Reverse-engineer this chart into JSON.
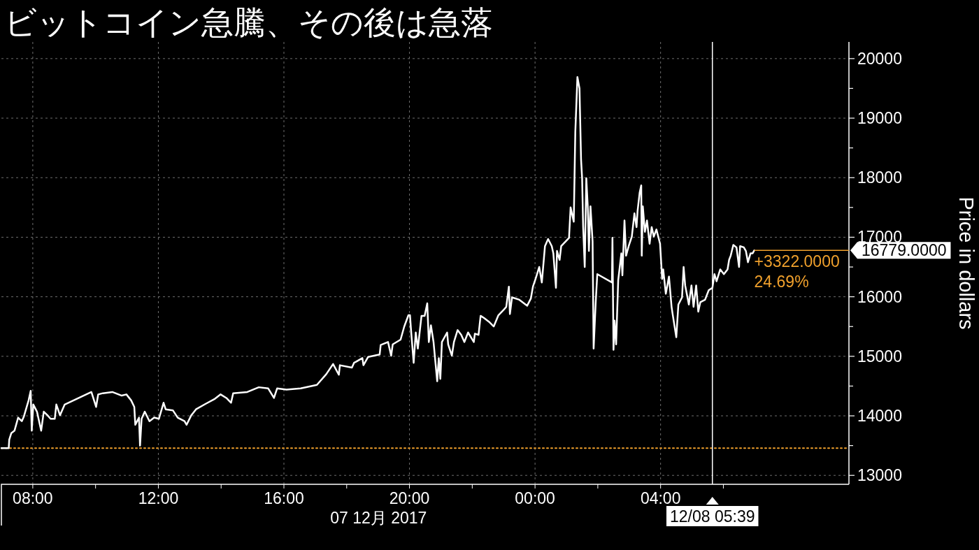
{
  "chart_data": {
    "type": "line",
    "title": "ビットコイン急騰、その後は急落",
    "xlabel": "07 12月 2017",
    "ylabel": "Price in dollars",
    "x": [
      "2017-12-07T07:00",
      "2017-12-07T07:14",
      "2017-12-07T07:15",
      "2017-12-07T07:19",
      "2017-12-07T07:25",
      "2017-12-07T07:32",
      "2017-12-07T07:39",
      "2017-12-07T07:43",
      "2017-12-07T07:52",
      "2017-12-07T07:56",
      "2017-12-07T07:58",
      "2017-12-07T08:01",
      "2017-12-07T08:08",
      "2017-12-07T08:16",
      "2017-12-07T08:21",
      "2017-12-07T08:28",
      "2017-12-07T08:34",
      "2017-12-07T08:42",
      "2017-12-07T08:45",
      "2017-12-07T08:52",
      "2017-12-07T09:01",
      "2017-12-07T09:52",
      "2017-12-07T10:01",
      "2017-12-07T10:05",
      "2017-12-07T10:14",
      "2017-12-07T10:32",
      "2017-12-07T10:50",
      "2017-12-07T10:59",
      "2017-12-07T11:08",
      "2017-12-07T11:14",
      "2017-12-07T11:16",
      "2017-12-07T11:23",
      "2017-12-07T11:25",
      "2017-12-07T11:28",
      "2017-12-07T11:34",
      "2017-12-07T11:43",
      "2017-12-07T11:52",
      "2017-12-07T12:01",
      "2017-12-07T12:10",
      "2017-12-07T12:14",
      "2017-12-07T12:28",
      "2017-12-07T12:37",
      "2017-12-07T12:50",
      "2017-12-07T12:54",
      "2017-12-07T13:03",
      "2017-12-07T13:12",
      "2017-12-07T13:30",
      "2017-12-07T13:47",
      "2017-12-07T13:59",
      "2017-12-07T14:10",
      "2017-12-07T14:19",
      "2017-12-07T14:23",
      "2017-12-07T14:50",
      "2017-12-07T15:12",
      "2017-12-07T15:30",
      "2017-12-07T15:41",
      "2017-12-07T15:47",
      "2017-12-07T16:05",
      "2017-12-07T16:32",
      "2017-12-07T17:03",
      "2017-12-07T17:21",
      "2017-12-07T17:34",
      "2017-12-07T17:45",
      "2017-12-07T17:47",
      "2017-12-07T18:10",
      "2017-12-07T18:14",
      "2017-12-07T18:30",
      "2017-12-07T18:32",
      "2017-12-07T18:41",
      "2017-12-07T19:03",
      "2017-12-07T19:05",
      "2017-12-07T19:19",
      "2017-12-07T19:25",
      "2017-12-07T19:28",
      "2017-12-07T19:43",
      "2017-12-07T19:50",
      "2017-12-07T19:58",
      "2017-12-07T20:01",
      "2017-12-07T20:03",
      "2017-12-07T20:08",
      "2017-12-07T20:12",
      "2017-12-07T20:16",
      "2017-12-07T20:23",
      "2017-12-07T20:29",
      "2017-12-07T20:34",
      "2017-12-07T20:37",
      "2017-12-07T20:41",
      "2017-12-07T20:46",
      "2017-12-07T20:53",
      "2017-12-07T20:56",
      "2017-12-07T20:59",
      "2017-12-07T21:02",
      "2017-12-07T21:12",
      "2017-12-07T21:14",
      "2017-12-07T21:21",
      "2017-12-07T21:25",
      "2017-12-07T21:32",
      "2017-12-07T21:39",
      "2017-12-07T21:45",
      "2017-12-07T21:52",
      "2017-12-07T22:03",
      "2017-12-07T22:05",
      "2017-12-07T22:12",
      "2017-12-07T22:16",
      "2017-12-07T22:23",
      "2017-12-07T22:32",
      "2017-12-07T22:41",
      "2017-12-07T22:50",
      "2017-12-07T22:59",
      "2017-12-07T23:05",
      "2017-12-07T23:10",
      "2017-12-07T23:12",
      "2017-12-07T23:16",
      "2017-12-07T23:30",
      "2017-12-07T23:45",
      "2017-12-07T23:52",
      "2017-12-07T23:56",
      "2017-12-08T00:01",
      "2017-12-08T00:08",
      "2017-12-08T00:13",
      "2017-12-08T00:19",
      "2017-12-08T00:25",
      "2017-12-08T00:32",
      "2017-12-08T00:35",
      "2017-12-08T00:40",
      "2017-12-08T00:42",
      "2017-12-08T00:47",
      "2017-12-08T00:50",
      "2017-12-08T01:05",
      "2017-12-08T01:08",
      "2017-12-08T01:14",
      "2017-12-08T01:17",
      "2017-12-08T01:21",
      "2017-12-08T01:25",
      "2017-12-08T01:28",
      "2017-12-08T01:30",
      "2017-12-08T01:32",
      "2017-12-08T01:35",
      "2017-12-08T01:38",
      "2017-12-08T01:41",
      "2017-12-08T01:43",
      "2017-12-08T01:46",
      "2017-12-08T01:50",
      "2017-12-08T01:52",
      "2017-12-08T01:56",
      "2017-12-08T01:59",
      "2017-12-08T02:27",
      "2017-12-08T02:28",
      "2017-12-08T02:30",
      "2017-12-08T02:32",
      "2017-12-08T02:35",
      "2017-12-08T02:39",
      "2017-12-08T02:45",
      "2017-12-08T02:47",
      "2017-12-08T02:51",
      "2017-12-08T02:54",
      "2017-12-08T02:59",
      "2017-12-08T03:05",
      "2017-12-08T03:10",
      "2017-12-08T03:14",
      "2017-12-08T03:16",
      "2017-12-08T03:20",
      "2017-12-08T03:23",
      "2017-12-08T03:24",
      "2017-12-08T03:26",
      "2017-12-08T03:30",
      "2017-12-08T03:34",
      "2017-12-08T03:39",
      "2017-12-08T03:43",
      "2017-12-08T03:47",
      "2017-12-08T03:52",
      "2017-12-08T03:59",
      "2017-12-08T04:03",
      "2017-12-08T04:05",
      "2017-12-08T04:10",
      "2017-12-08T04:16",
      "2017-12-08T04:21",
      "2017-12-08T04:23",
      "2017-12-08T04:30",
      "2017-12-08T04:34",
      "2017-12-08T04:41",
      "2017-12-08T04:44",
      "2017-12-08T04:47",
      "2017-12-08T04:54",
      "2017-12-08T04:59",
      "2017-12-08T05:03",
      "2017-12-08T05:08",
      "2017-12-08T05:12",
      "2017-12-08T05:16",
      "2017-12-08T05:25",
      "2017-12-08T05:32",
      "2017-12-08T05:39",
      "2017-12-08T05:43",
      "2017-12-08T05:47",
      "2017-12-08T05:54",
      "2017-12-08T06:01",
      "2017-12-08T06:08",
      "2017-12-08T06:11",
      "2017-12-08T06:14",
      "2017-12-08T06:19",
      "2017-12-08T06:25",
      "2017-12-08T06:30",
      "2017-12-08T06:32",
      "2017-12-08T06:39",
      "2017-12-08T06:43",
      "2017-12-08T06:47",
      "2017-12-08T06:52",
      "2017-12-08T06:56",
      "2017-12-08T06:59"
    ],
    "series": [
      {
        "color": "#ffffff",
        "values": [
          13457,
          13457,
          13600,
          13710,
          13750,
          13970,
          13910,
          13990,
          14260,
          14420,
          13750,
          14190,
          14070,
          13750,
          14070,
          14010,
          13950,
          13950,
          14190,
          14010,
          14190,
          14400,
          14150,
          14360,
          14380,
          14400,
          14340,
          14360,
          14260,
          14150,
          13850,
          13970,
          13500,
          13950,
          14070,
          13910,
          13970,
          13950,
          14220,
          14110,
          14090,
          13970,
          13910,
          13850,
          14010,
          14110,
          14200,
          14280,
          14360,
          14300,
          14220,
          14380,
          14400,
          14480,
          14460,
          14300,
          14460,
          14440,
          14460,
          14520,
          14700,
          14870,
          14690,
          14850,
          14810,
          14890,
          14970,
          14850,
          14990,
          15030,
          15190,
          15240,
          15010,
          15200,
          15280,
          15500,
          15690,
          15690,
          15440,
          14890,
          15400,
          15130,
          15680,
          15680,
          15890,
          15240,
          15520,
          15240,
          14580,
          14970,
          14620,
          15240,
          15400,
          15200,
          15010,
          15240,
          15440,
          15360,
          15240,
          15400,
          15240,
          15380,
          15360,
          15680,
          15640,
          15580,
          15500,
          15690,
          15770,
          15830,
          16170,
          15710,
          15990,
          15950,
          15850,
          15970,
          16170,
          16300,
          16500,
          16240,
          16850,
          16970,
          16850,
          16730,
          16150,
          16770,
          16620,
          16850,
          16990,
          17500,
          17260,
          18770,
          19690,
          19500,
          18300,
          17990,
          17170,
          16500,
          17990,
          17480,
          16770,
          17520,
          16930,
          15130,
          15910,
          16380,
          16240,
          16990,
          15110,
          15600,
          15200,
          16280,
          16730,
          16360,
          17280,
          16690,
          16850,
          17010,
          17400,
          17170,
          17440,
          17750,
          17870,
          16690,
          17520,
          17090,
          17280,
          16890,
          17170,
          17010,
          17130,
          16890,
          16300,
          16460,
          16050,
          16340,
          15830,
          15710,
          15320,
          15870,
          15990,
          16500,
          16190,
          15870,
          16190,
          15830,
          16190,
          15750,
          15910,
          15950,
          16110,
          16150,
          16380,
          16260,
          16460,
          16380,
          16460,
          16620,
          16690,
          16870,
          16830,
          16500,
          16850,
          16830,
          16770,
          16580,
          16730,
          16730,
          16779
        ]
      }
    ],
    "xlim": [
      "2017-12-07T07:00",
      "2017-12-08T10:00"
    ],
    "xticks": [
      {
        "value": "2017-12-07T08:00",
        "label": "08:00"
      },
      {
        "value": "2017-12-07T10:00",
        "label": null
      },
      {
        "value": "2017-12-07T12:00",
        "label": "12:00"
      },
      {
        "value": "2017-12-07T14:00",
        "label": null
      },
      {
        "value": "2017-12-07T16:00",
        "label": "16:00"
      },
      {
        "value": "2017-12-07T18:00",
        "label": null
      },
      {
        "value": "2017-12-07T20:00",
        "label": "20:00"
      },
      {
        "value": "2017-12-07T22:00",
        "label": null
      },
      {
        "value": "2017-12-08T00:00",
        "label": "00:00"
      },
      {
        "value": "2017-12-08T02:00",
        "label": null
      },
      {
        "value": "2017-12-08T04:00",
        "label": "04:00"
      },
      {
        "value": "2017-12-08T06:00",
        "label": null
      }
    ],
    "ylim": [
      12850,
      20280
    ],
    "yticks": [
      13000,
      {
        "value": 13500,
        "label": null
      },
      14000,
      {
        "value": 14500,
        "label": null
      },
      15000,
      {
        "value": 15500,
        "label": null
      },
      16000,
      {
        "value": 16500,
        "label": null
      },
      17000,
      {
        "value": 17500,
        "label": null
      },
      18000,
      {
        "value": 18500,
        "label": null
      },
      19000,
      {
        "value": 19500,
        "label": null
      },
      20000
    ],
    "grid": true,
    "ref_lines": [
      {
        "axis": "y",
        "value": 13457,
        "color": "#f0a02c",
        "line_style": "dotted"
      },
      {
        "axis": "x",
        "value": "2017-12-08T05:39",
        "label": "12/08 05:39",
        "color": "#ffffff"
      }
    ],
    "annotations": [
      {
        "text": "16779.0000",
        "x": "2017-12-08T06:59",
        "y": 16779
      },
      "+3322.0000",
      "24.69%"
    ]
  }
}
